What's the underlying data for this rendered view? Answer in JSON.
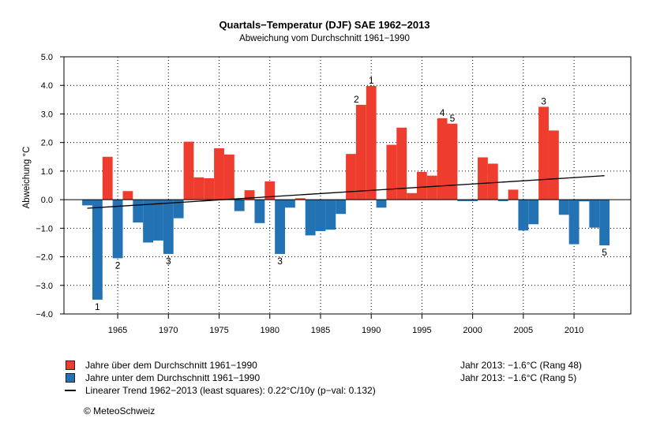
{
  "chart_data": {
    "type": "bar",
    "title": "Quartals−Temperatur (DJF) SAE 1962−2013",
    "subtitle": "Abweichung vom Durchschnitt 1961−1990",
    "xlabel": "",
    "ylabel": "Abweichung °C",
    "ylim": [
      -4.0,
      5.0
    ],
    "xlim": [
      1959.7,
      2015.6
    ],
    "yticks": [
      "5.0",
      "4.0",
      "3.0",
      "2.0",
      "1.0",
      "0.0",
      "−1.0",
      "−2.0",
      "−3.0",
      "−4.0"
    ],
    "ytick_values": [
      5,
      4,
      3,
      2,
      1,
      0,
      -1,
      -2,
      -3,
      -4
    ],
    "xticks": [
      1965,
      1970,
      1975,
      1980,
      1985,
      1990,
      1995,
      2000,
      2005,
      2010
    ],
    "grid": true,
    "years": [
      1962,
      1963,
      1964,
      1965,
      1966,
      1967,
      1968,
      1969,
      1970,
      1971,
      1972,
      1973,
      1974,
      1975,
      1976,
      1977,
      1978,
      1979,
      1980,
      1981,
      1982,
      1983,
      1984,
      1985,
      1986,
      1987,
      1988,
      1989,
      1990,
      1991,
      1992,
      1993,
      1994,
      1995,
      1996,
      1997,
      1998,
      1999,
      2000,
      2001,
      2002,
      2003,
      2004,
      2005,
      2006,
      2007,
      2008,
      2009,
      2010,
      2011,
      2012,
      2013
    ],
    "values": [
      -0.2,
      -3.5,
      1.5,
      -2.05,
      0.3,
      -0.8,
      -1.5,
      -1.43,
      -1.9,
      -0.65,
      2.03,
      0.78,
      0.75,
      1.8,
      1.58,
      -0.4,
      0.33,
      -0.82,
      0.64,
      -1.9,
      -0.28,
      0.05,
      -1.25,
      -1.1,
      -1.05,
      -0.5,
      1.6,
      3.32,
      3.98,
      -0.28,
      1.92,
      2.52,
      0.23,
      0.97,
      0.84,
      2.85,
      2.66,
      -0.05,
      -0.05,
      1.48,
      1.26,
      -0.05,
      0.35,
      -1.08,
      -0.86,
      3.25,
      2.42,
      -0.53,
      -1.56,
      -0.06,
      -0.98,
      -1.6
    ],
    "rank_labels": [
      {
        "year": 1963,
        "label": "1",
        "side": "below"
      },
      {
        "year": 1965,
        "label": "2",
        "side": "below"
      },
      {
        "year": 1970,
        "label": "3",
        "side": "below"
      },
      {
        "year": 1981,
        "label": "3",
        "side": "below"
      },
      {
        "year": 2013,
        "label": "5",
        "side": "below"
      },
      {
        "year": 1990,
        "label": "1",
        "side": "above"
      },
      {
        "year": 1989,
        "label": "2",
        "side": "above"
      },
      {
        "year": 2007,
        "label": "3",
        "side": "above"
      },
      {
        "year": 1997,
        "label": "4",
        "side": "above"
      },
      {
        "year": 1998,
        "label": "5",
        "side": "above"
      }
    ],
    "trend": {
      "x": [
        1962,
        2013
      ],
      "y": [
        -0.3,
        0.84
      ],
      "label": "Linearer Trend 1962−2013 (least squares): 0.22°C/10y (p−val: 0.132)"
    },
    "colors": {
      "above": "#EE3D2E",
      "below": "#2272B4",
      "trend": "#000000"
    },
    "legend": [
      {
        "label": "Jahre über dem Durchschnitt 1961−1990",
        "color": "#EE3D2E"
      },
      {
        "label": "Jahre unter dem Durchschnitt 1961−1990",
        "color": "#2272B4"
      },
      {
        "label": "Linearer Trend 1962−2013 (least squares): 0.22°C/10y (p−val: 0.132)",
        "color": "#000000"
      }
    ],
    "legend_position": "bottom-left"
  },
  "info": {
    "line1": "Jahr 2013: −1.6°C (Rang 48)",
    "line2": "Jahr 2013: −1.6°C (Rang 5)"
  },
  "copyright": "© MeteoSchweiz"
}
